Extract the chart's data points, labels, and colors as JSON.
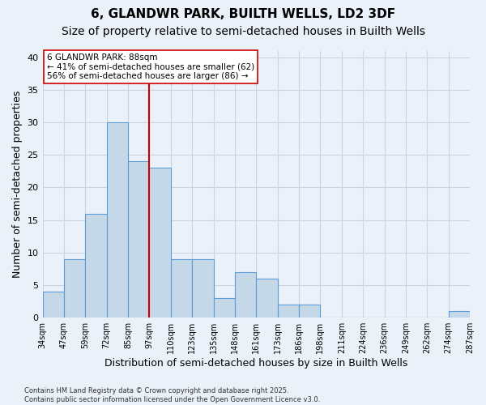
{
  "title": "6, GLANDWR PARK, BUILTH WELLS, LD2 3DF",
  "subtitle": "Size of property relative to semi-detached houses in Builth Wells",
  "xlabel": "Distribution of semi-detached houses by size in Builth Wells",
  "ylabel": "Number of semi-detached properties",
  "bar_values": [
    4,
    9,
    16,
    30,
    24,
    23,
    9,
    9,
    3,
    7,
    6,
    2,
    2,
    0,
    0,
    0,
    0,
    0,
    0,
    1
  ],
  "categories": [
    "34sqm",
    "47sqm",
    "59sqm",
    "72sqm",
    "85sqm",
    "97sqm",
    "110sqm",
    "123sqm",
    "135sqm",
    "148sqm",
    "161sqm",
    "173sqm",
    "186sqm",
    "198sqm",
    "211sqm",
    "224sqm",
    "236sqm",
    "249sqm",
    "262sqm",
    "274sqm",
    "287sqm"
  ],
  "bar_color": "#c5d8e8",
  "bar_edge_color": "#5b9bd5",
  "grid_color": "#c8d4e0",
  "background_color": "#eaf1f8",
  "property_bin_index": 4,
  "vline_color": "#cc0000",
  "annotation_text": "6 GLANDWR PARK: 88sqm\n← 41% of semi-detached houses are smaller (62)\n56% of semi-detached houses are larger (86) →",
  "annotation_box_color": "#ffffff",
  "annotation_box_edge": "#cc0000",
  "ylim": [
    0,
    41
  ],
  "yticks": [
    0,
    5,
    10,
    15,
    20,
    25,
    30,
    35,
    40
  ],
  "footer": "Contains HM Land Registry data © Crown copyright and database right 2025.\nContains public sector information licensed under the Open Government Licence v3.0.",
  "title_fontsize": 11,
  "subtitle_fontsize": 10,
  "xlabel_fontsize": 9,
  "ylabel_fontsize": 9,
  "tick_fontsize": 7,
  "annotation_fontsize": 7.5
}
